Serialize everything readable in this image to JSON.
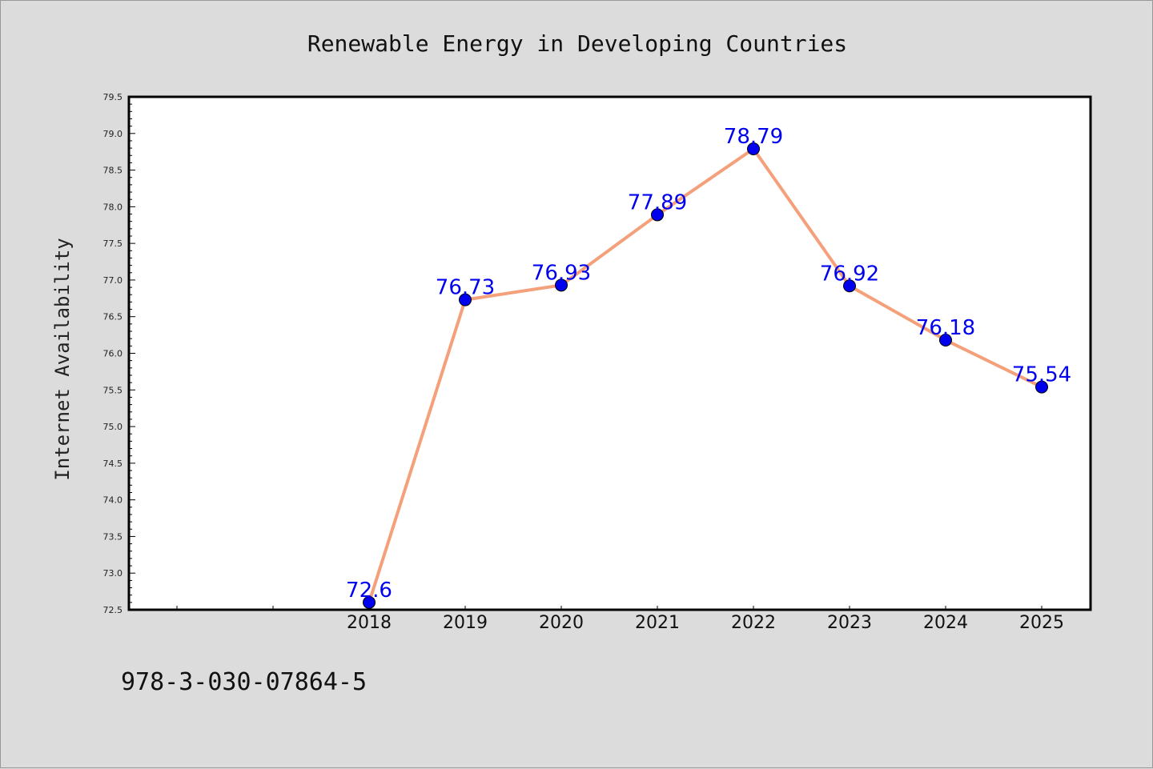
{
  "chart_data": {
    "type": "line",
    "title": "Renewable Energy in Developing Countries",
    "xlabel": "",
    "ylabel": "Internet Availability",
    "categories": [
      "2018",
      "2019",
      "2020",
      "2021",
      "2022",
      "2023",
      "2024",
      "2025"
    ],
    "values": [
      72.6,
      76.73,
      76.93,
      77.89,
      78.79,
      76.92,
      76.18,
      75.54
    ],
    "data_labels": [
      "72.6",
      "76.73",
      "76.93",
      "77.89",
      "78.79",
      "76.92",
      "76.18",
      "75.54"
    ],
    "ylim": [
      72.5,
      79.5
    ],
    "yticks": [
      "72.5",
      "73.0",
      "73.5",
      "74.0",
      "74.5",
      "75.0",
      "75.5",
      "76.0",
      "76.5",
      "77.0",
      "77.5",
      "78.0",
      "78.5",
      "79.0",
      "79.5"
    ],
    "grid": false,
    "legend": "none",
    "colors": {
      "line": "#f4a07a",
      "marker": "#0000ee",
      "label": "#0000ee",
      "background": "#dcdcdc",
      "plot_background": "#ffffff"
    }
  },
  "footer": {
    "isbn": "978-3-030-07864-5"
  }
}
